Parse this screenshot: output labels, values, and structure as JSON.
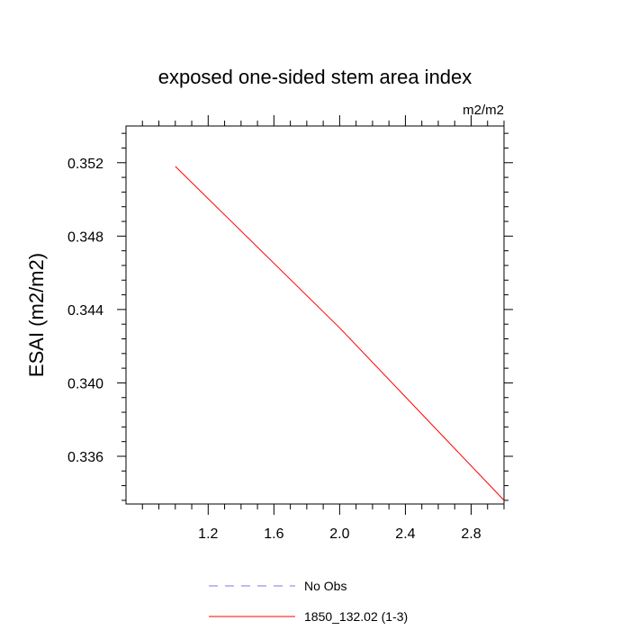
{
  "chart_data": {
    "type": "line",
    "title": "exposed one-sided stem area index",
    "units_label": "m2/m2",
    "ylabel": "ESAI  (m2/m2)",
    "xlabel": "",
    "xlim": [
      0.7,
      3.0
    ],
    "ylim": [
      0.3334,
      0.354
    ],
    "xticks": [
      1.2,
      1.6,
      2.0,
      2.4,
      2.8
    ],
    "xtick_labels": [
      "1.2",
      "1.6",
      "2.0",
      "2.4",
      "2.8"
    ],
    "yticks": [
      0.336,
      0.34,
      0.344,
      0.348,
      0.352
    ],
    "ytick_labels": [
      "0.336",
      "0.340",
      "0.344",
      "0.348",
      "0.352"
    ],
    "grid": false,
    "legend_position": "bottom-center",
    "series": [
      {
        "name": "No Obs",
        "color": "#7777ee",
        "dash": true,
        "x": [],
        "y": []
      },
      {
        "name": "1850_132.02 (1-3)",
        "color": "#ff0000",
        "dash": false,
        "x": [
          1.0,
          2.0,
          3.0
        ],
        "y": [
          0.3518,
          0.343,
          0.3336
        ]
      }
    ]
  }
}
